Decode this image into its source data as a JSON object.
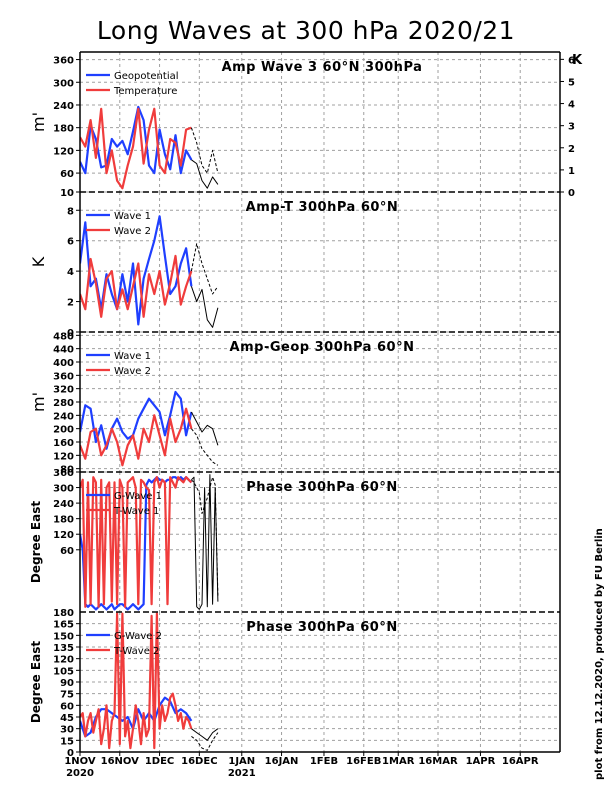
{
  "title": "Long Waves at 300 hPa 2020/21",
  "credit": "plot from 12.12.2020, produced by FU Berlin",
  "colors": {
    "blue": "#1f3fff",
    "red": "#f03c3c",
    "forecast": "#000000",
    "grid": "#a0a0a0"
  },
  "x_axis": {
    "tick_labels": [
      "1NOV",
      "16NOV",
      "1DEC",
      "16DEC",
      "1JAN",
      "16JAN",
      "1FEB",
      "16FEB",
      "1MAR",
      "16MAR",
      "1APR",
      "16APR"
    ],
    "year_labels": [
      {
        "label": "2020",
        "at": "1NOV"
      },
      {
        "label": "2021",
        "at": "1JAN"
      }
    ]
  },
  "chart_data": [
    {
      "type": "line",
      "title": "Amp Wave 3 60°N 300hPa",
      "ylabel": "m'",
      "ylabel_right": "K",
      "y_ticks": [
        10,
        60,
        120,
        180,
        240,
        300,
        360
      ],
      "y_ticks_right": [
        0,
        1,
        2,
        3,
        4,
        5,
        6
      ],
      "ylim": [
        10,
        380
      ],
      "ylim_right": [
        0,
        6.333
      ],
      "x_unit": "days since 1 Nov 2020",
      "series": [
        {
          "name": "Geopotential",
          "color": "blue",
          "axis": "left",
          "x": [
            0,
            2,
            4,
            6,
            8,
            10,
            12,
            14,
            16,
            18,
            20,
            22,
            24,
            26,
            28,
            30,
            32,
            34,
            36,
            38,
            40,
            42
          ],
          "y": [
            90,
            60,
            185,
            150,
            75,
            80,
            150,
            130,
            145,
            110,
            170,
            235,
            200,
            80,
            60,
            175,
            110,
            70,
            160,
            60,
            120,
            95
          ]
        },
        {
          "name": "Temperature",
          "color": "red",
          "axis": "left",
          "x": [
            0,
            2,
            4,
            6,
            8,
            10,
            12,
            14,
            16,
            18,
            20,
            22,
            24,
            26,
            28,
            30,
            32,
            34,
            36,
            38,
            40,
            42
          ],
          "y": [
            155,
            130,
            200,
            100,
            230,
            60,
            120,
            40,
            20,
            80,
            130,
            230,
            85,
            175,
            230,
            80,
            60,
            150,
            140,
            80,
            175,
            180
          ]
        },
        {
          "name": "",
          "color": "forecast",
          "dashed": false,
          "axis": "left",
          "x": [
            42,
            44,
            46,
            48,
            50,
            52
          ],
          "y": [
            95,
            85,
            40,
            20,
            50,
            30
          ]
        },
        {
          "name": "",
          "color": "forecast",
          "dashed": true,
          "axis": "left",
          "x": [
            42,
            44,
            46,
            48,
            50,
            52
          ],
          "y": [
            180,
            140,
            80,
            60,
            120,
            60
          ]
        }
      ]
    },
    {
      "type": "line",
      "title": "Amp-T 300hPa 60°N",
      "ylabel": "K",
      "y_ticks": [
        0,
        2,
        4,
        6,
        8
      ],
      "ylim": [
        0,
        9.2
      ],
      "x_unit": "days since 1 Nov 2020",
      "series": [
        {
          "name": "Wave 1",
          "color": "blue",
          "axis": "left",
          "x": [
            0,
            2,
            4,
            6,
            8,
            10,
            12,
            14,
            16,
            18,
            20,
            22,
            24,
            26,
            28,
            30,
            32,
            34,
            36,
            38,
            40,
            42
          ],
          "y": [
            4.5,
            7.2,
            3.0,
            3.5,
            1.5,
            3.8,
            2.5,
            1.5,
            3.8,
            2.0,
            4.5,
            0.5,
            3.5,
            4.8,
            6.0,
            7.6,
            5.0,
            2.5,
            3.0,
            4.5,
            5.5,
            3.0
          ]
        },
        {
          "name": "Wave 2",
          "color": "red",
          "axis": "left",
          "x": [
            0,
            2,
            4,
            6,
            8,
            10,
            12,
            14,
            16,
            18,
            20,
            22,
            24,
            26,
            28,
            30,
            32,
            34,
            36,
            38,
            40,
            42
          ],
          "y": [
            2.5,
            1.5,
            4.8,
            3.2,
            1.0,
            3.5,
            4.0,
            1.5,
            2.8,
            1.5,
            3.0,
            4.5,
            1.0,
            3.8,
            2.5,
            4.0,
            1.8,
            3.2,
            5.0,
            1.8,
            3.0,
            4.0
          ]
        },
        {
          "name": "",
          "color": "forecast",
          "dashed": false,
          "axis": "left",
          "x": [
            42,
            44,
            46,
            48,
            50,
            52
          ],
          "y": [
            3.0,
            2.0,
            2.8,
            0.8,
            0.3,
            1.6
          ]
        },
        {
          "name": "",
          "color": "forecast",
          "dashed": true,
          "axis": "left",
          "x": [
            42,
            44,
            46,
            48,
            50,
            52
          ],
          "y": [
            4.0,
            5.8,
            4.5,
            3.5,
            2.5,
            3.0
          ]
        }
      ]
    },
    {
      "type": "line",
      "title": "Amp-Geop 300hPa 60°N",
      "ylabel": "m'",
      "y_ticks": [
        80,
        120,
        160,
        200,
        240,
        280,
        320,
        360,
        400,
        440,
        480
      ],
      "ylim": [
        70,
        490
      ],
      "x_unit": "days since 1 Nov 2020",
      "series": [
        {
          "name": "Wave 1",
          "color": "blue",
          "axis": "left",
          "x": [
            0,
            2,
            4,
            6,
            8,
            10,
            12,
            14,
            16,
            18,
            20,
            22,
            24,
            26,
            28,
            30,
            32,
            34,
            36,
            38,
            40,
            42
          ],
          "y": [
            190,
            270,
            260,
            160,
            210,
            140,
            200,
            230,
            190,
            170,
            180,
            230,
            260,
            290,
            270,
            250,
            180,
            240,
            310,
            290,
            180,
            250
          ]
        },
        {
          "name": "Wave 2",
          "color": "red",
          "axis": "left",
          "x": [
            0,
            2,
            4,
            6,
            8,
            10,
            12,
            14,
            16,
            18,
            20,
            22,
            24,
            26,
            28,
            30,
            32,
            34,
            36,
            38,
            40,
            42
          ],
          "y": [
            150,
            110,
            190,
            200,
            120,
            150,
            200,
            160,
            90,
            150,
            180,
            110,
            200,
            160,
            240,
            180,
            120,
            230,
            160,
            200,
            260,
            200
          ]
        },
        {
          "name": "",
          "color": "forecast",
          "dashed": false,
          "axis": "left",
          "x": [
            42,
            44,
            46,
            48,
            50,
            52
          ],
          "y": [
            250,
            220,
            190,
            210,
            200,
            150
          ]
        },
        {
          "name": "",
          "color": "forecast",
          "dashed": true,
          "axis": "left",
          "x": [
            42,
            44,
            46,
            48,
            50,
            52
          ],
          "y": [
            200,
            180,
            140,
            120,
            100,
            90
          ]
        }
      ]
    },
    {
      "type": "line",
      "title": "Phase 300hPa 60°N",
      "ylabel": "Degree East",
      "y_ticks": [
        60,
        120,
        180,
        240,
        300,
        360
      ],
      "y_ticks_bottom_label": "180",
      "ylim": [
        -180,
        360
      ],
      "x_unit": "days since 1 Nov 2020",
      "series": [
        {
          "name": "G-Wave 1",
          "color": "blue",
          "axis": "left",
          "x": [
            0,
            1,
            2,
            3,
            4,
            5,
            6,
            7,
            8,
            9,
            10,
            11,
            12,
            13,
            14,
            15,
            16,
            17,
            18,
            19,
            20,
            21,
            22,
            23,
            24,
            25,
            26,
            27,
            28,
            29,
            30,
            31,
            32,
            33,
            34,
            35,
            36,
            37,
            38,
            39,
            40,
            41,
            42
          ],
          "y": [
            120,
            60,
            -150,
            -160,
            -150,
            -160,
            -170,
            -160,
            -150,
            -160,
            -170,
            -160,
            -150,
            -170,
            -160,
            -150,
            -150,
            -160,
            -170,
            -160,
            -150,
            -160,
            -170,
            -160,
            -150,
            310,
            330,
            320,
            330,
            340,
            330,
            330,
            320,
            330,
            330,
            340,
            340,
            330,
            340,
            330,
            340,
            330,
            320
          ]
        },
        {
          "name": "T-Wave 1",
          "color": "red",
          "axis": "left",
          "x": [
            0,
            1,
            2,
            3,
            4,
            5,
            6,
            7,
            8,
            9,
            10,
            11,
            12,
            13,
            14,
            15,
            16,
            17,
            18,
            19,
            20,
            21,
            22,
            23,
            24,
            25,
            26,
            27,
            28,
            29,
            30,
            31,
            32,
            33,
            34,
            35,
            36,
            37,
            38,
            39,
            40,
            41,
            42
          ],
          "y": [
            300,
            330,
            -160,
            320,
            -150,
            340,
            320,
            -160,
            330,
            -150,
            300,
            320,
            -140,
            320,
            -150,
            330,
            300,
            -160,
            320,
            330,
            340,
            300,
            -150,
            330,
            320,
            300,
            290,
            -150,
            320,
            340,
            300,
            330,
            320,
            -150,
            340,
            320,
            300,
            340,
            330,
            320,
            340,
            330,
            320
          ]
        },
        {
          "name": "",
          "color": "forecast",
          "dashed": false,
          "axis": "left",
          "x": [
            42,
            43,
            44,
            45,
            46,
            47,
            48,
            49,
            50,
            51,
            52
          ],
          "y": [
            330,
            340,
            -160,
            -170,
            -150,
            300,
            -160,
            350,
            -150,
            300,
            -140
          ]
        },
        {
          "name": "",
          "color": "forecast",
          "dashed": true,
          "axis": "left",
          "x": [
            42,
            43,
            44,
            45,
            46,
            47,
            48,
            49,
            50,
            51,
            52
          ],
          "y": [
            330,
            320,
            300,
            280,
            200,
            230,
            260,
            300,
            340,
            310,
            -120
          ]
        }
      ]
    },
    {
      "type": "line",
      "title": "Phase 300hPa 60°N",
      "ylabel": "Degree East",
      "y_ticks": [
        0,
        15,
        30,
        45,
        60,
        75,
        90,
        105,
        120,
        135,
        150,
        165
      ],
      "ylim": [
        0,
        180
      ],
      "x_unit": "days since 1 Nov 2020",
      "series": [
        {
          "name": "G-Wave 2",
          "color": "blue",
          "axis": "left",
          "x": [
            0,
            2,
            4,
            6,
            8,
            10,
            12,
            14,
            16,
            18,
            20,
            22,
            24,
            26,
            28,
            30,
            32,
            34,
            36,
            38,
            40,
            42
          ],
          "y": [
            40,
            20,
            25,
            45,
            55,
            55,
            50,
            45,
            40,
            45,
            30,
            55,
            40,
            50,
            40,
            60,
            70,
            65,
            50,
            55,
            50,
            40
          ]
        },
        {
          "name": "T-Wave 2",
          "color": "red",
          "axis": "left",
          "x": [
            0,
            1,
            2,
            3,
            4,
            5,
            6,
            7,
            8,
            9,
            10,
            11,
            12,
            13,
            14,
            15,
            16,
            17,
            18,
            19,
            20,
            21,
            22,
            23,
            24,
            25,
            26,
            27,
            28,
            29,
            30,
            31,
            32,
            33,
            34,
            35,
            36,
            37,
            38,
            39,
            40,
            41,
            42
          ],
          "y": [
            45,
            50,
            20,
            40,
            50,
            25,
            40,
            55,
            10,
            30,
            60,
            5,
            40,
            50,
            178,
            10,
            178,
            20,
            40,
            5,
            30,
            60,
            40,
            10,
            50,
            20,
            30,
            175,
            5,
            178,
            30,
            60,
            40,
            50,
            70,
            75,
            60,
            40,
            50,
            30,
            45,
            40,
            30
          ]
        },
        {
          "name": "",
          "color": "forecast",
          "dashed": false,
          "axis": "left",
          "x": [
            42,
            44,
            46,
            48,
            50,
            52
          ],
          "y": [
            30,
            25,
            20,
            15,
            25,
            30
          ]
        },
        {
          "name": "",
          "color": "forecast",
          "dashed": true,
          "axis": "left",
          "x": [
            42,
            44,
            46,
            48,
            50,
            52
          ],
          "y": [
            20,
            15,
            5,
            2,
            15,
            25
          ]
        }
      ]
    }
  ]
}
